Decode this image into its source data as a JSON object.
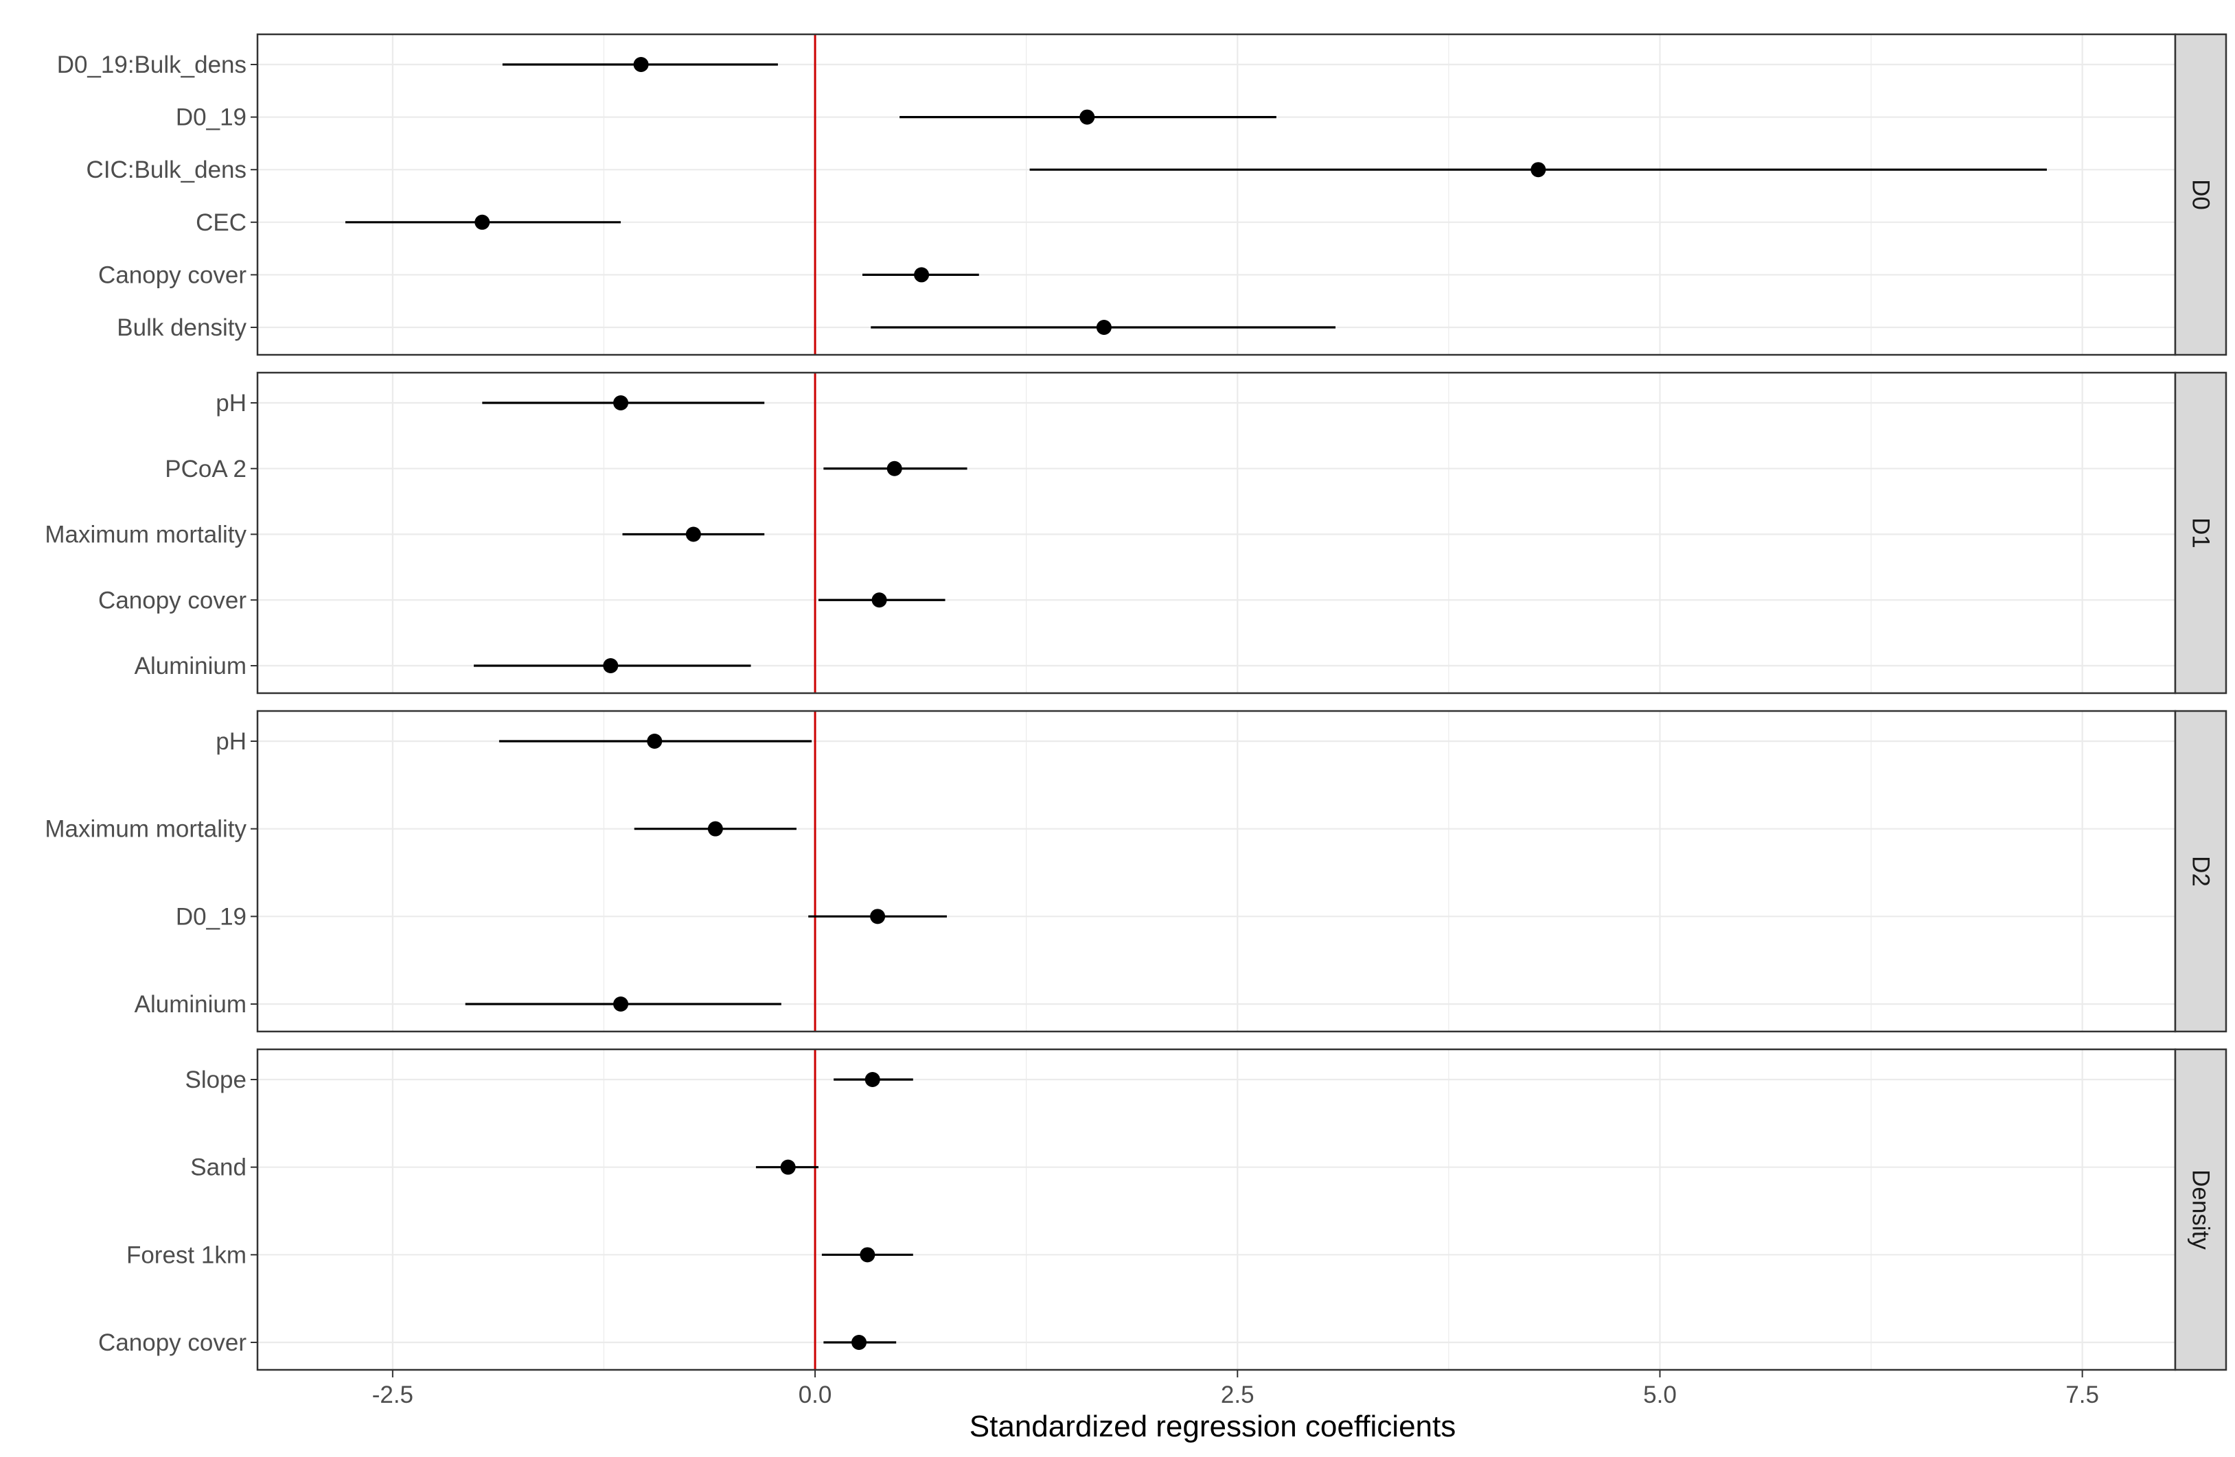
{
  "chart_data": {
    "type": "scatter",
    "subtype": "coefficient-plot-with-intervals",
    "xlabel": "Standardized regression coefficients",
    "x_ticks": [
      "-2.5",
      "0.0",
      "2.5",
      "5.0",
      "7.5"
    ],
    "x_tick_values": [
      -2.5,
      0,
      2.5,
      5,
      7.5
    ],
    "xlim": [
      -3.3,
      8.05
    ],
    "reference_line": {
      "x": 0,
      "color": "#cc0000"
    },
    "grid": true,
    "panels": [
      {
        "strip_label": "D0",
        "rows": [
          {
            "label": "D0_19:Bulk_dens",
            "estimate": -1.03,
            "lower": -1.85,
            "upper": -0.22
          },
          {
            "label": "D0_19",
            "estimate": 1.61,
            "lower": 0.5,
            "upper": 2.73
          },
          {
            "label": "CIC:Bulk_dens",
            "estimate": 4.28,
            "lower": 1.27,
            "upper": 7.29
          },
          {
            "label": "CEC",
            "estimate": -1.97,
            "lower": -2.78,
            "upper": -1.15
          },
          {
            "label": "Canopy cover",
            "estimate": 0.63,
            "lower": 0.28,
            "upper": 0.97
          },
          {
            "label": "Bulk density",
            "estimate": 1.71,
            "lower": 0.33,
            "upper": 3.08
          }
        ]
      },
      {
        "strip_label": "D1",
        "rows": [
          {
            "label": "pH",
            "estimate": -1.15,
            "lower": -1.97,
            "upper": -0.3
          },
          {
            "label": "PCoA 2",
            "estimate": 0.47,
            "lower": 0.05,
            "upper": 0.9
          },
          {
            "label": "Maximum mortality",
            "estimate": -0.72,
            "lower": -1.14,
            "upper": -0.3
          },
          {
            "label": "Canopy cover",
            "estimate": 0.38,
            "lower": 0.02,
            "upper": 0.77
          },
          {
            "label": "Aluminium",
            "estimate": -1.21,
            "lower": -2.02,
            "upper": -0.38
          }
        ]
      },
      {
        "strip_label": "D2",
        "rows": [
          {
            "label": "pH",
            "estimate": -0.95,
            "lower": -1.87,
            "upper": -0.02
          },
          {
            "label": "Maximum mortality",
            "estimate": -0.59,
            "lower": -1.07,
            "upper": -0.11
          },
          {
            "label": "D0_19",
            "estimate": 0.37,
            "lower": -0.04,
            "upper": 0.78
          },
          {
            "label": "Aluminium",
            "estimate": -1.15,
            "lower": -2.07,
            "upper": -0.2
          }
        ]
      },
      {
        "strip_label": "Density",
        "rows": [
          {
            "label": "Slope",
            "estimate": 0.34,
            "lower": 0.11,
            "upper": 0.58
          },
          {
            "label": "Sand",
            "estimate": -0.16,
            "lower": -0.35,
            "upper": 0.02
          },
          {
            "label": "Forest 1km",
            "estimate": 0.31,
            "lower": 0.04,
            "upper": 0.58
          },
          {
            "label": "Canopy cover",
            "estimate": 0.26,
            "lower": 0.05,
            "upper": 0.48
          }
        ]
      }
    ],
    "colors": {
      "point": "#000000",
      "interval": "#000000",
      "grid": "#ebebeb",
      "panel_border": "#333333",
      "strip_fill": "#d9d9d9",
      "reference_line": "#cc0000"
    }
  }
}
